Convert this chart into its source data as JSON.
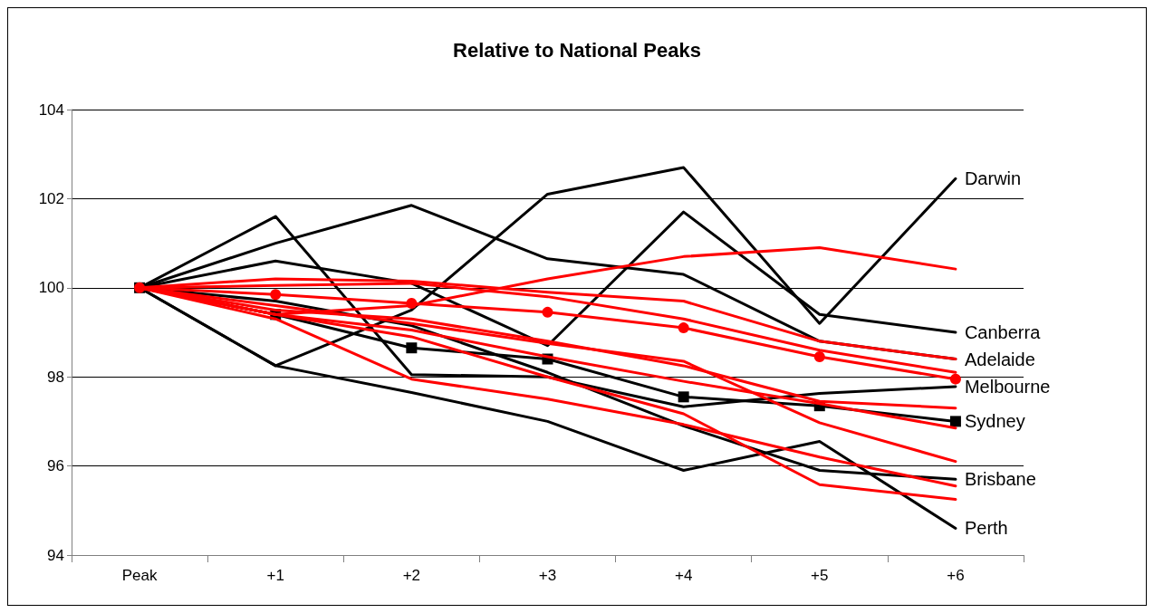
{
  "chart_data": {
    "type": "line",
    "title": "Relative to National Peaks",
    "categories": [
      "Peak",
      "+1",
      "+2",
      "+3",
      "+4",
      "+5",
      "+6"
    ],
    "ylim": [
      94,
      104
    ],
    "yticks": [
      94,
      96,
      98,
      100,
      102,
      104
    ],
    "grid": "y",
    "legend": false,
    "marker": "none",
    "line_style": "solid",
    "series": [
      {
        "color": "#ff0000",
        "values": [
          100,
          99.4,
          99.6,
          100.2,
          100.7,
          100.9,
          100.42
        ]
      },
      {
        "color": "#ff0000",
        "values": [
          100,
          100.2,
          100.15,
          99.9,
          99.7,
          98.8,
          98.4
        ]
      },
      {
        "color": "#ff0000",
        "marker": "circle",
        "values": [
          100,
          99.85,
          99.65,
          99.45,
          99.1,
          98.45,
          97.95
        ]
      },
      {
        "color": "#ff0000",
        "values": [
          100,
          100.05,
          100.1,
          99.8,
          99.3,
          98.6,
          98.1
        ]
      },
      {
        "color": "#ff0000",
        "values": [
          100,
          99.5,
          99.3,
          98.8,
          98.25,
          97.45,
          97.3
        ]
      },
      {
        "color": "#ff0000",
        "values": [
          100,
          99.4,
          99.05,
          98.45,
          97.9,
          97.4,
          96.85
        ]
      },
      {
        "color": "#ff0000",
        "values": [
          100,
          99.6,
          99.2,
          98.75,
          98.35,
          96.97,
          96.1
        ]
      },
      {
        "color": "#ff0000",
        "values": [
          100,
          99.3,
          97.95,
          97.5,
          96.93,
          96.2,
          95.55
        ]
      },
      {
        "color": "#ff0000",
        "values": [
          100,
          99.4,
          98.9,
          98.0,
          97.17,
          95.58,
          95.25
        ]
      },
      {
        "name": "Darwin",
        "color": "#000000",
        "values": [
          100,
          98.25,
          99.5,
          102.1,
          102.7,
          99.2,
          102.45
        ]
      },
      {
        "name": "Canberra",
        "color": "#000000",
        "values": [
          100,
          100.6,
          100.1,
          98.7,
          101.7,
          99.4,
          99.0
        ]
      },
      {
        "name": "Adelaide",
        "color": "#000000",
        "values": [
          100,
          101.0,
          101.85,
          100.65,
          100.3,
          98.8,
          98.4
        ]
      },
      {
        "name": "Melbourne",
        "color": "#000000",
        "values": [
          100,
          101.6,
          98.05,
          98.0,
          97.33,
          97.63,
          97.78
        ]
      },
      {
        "name": "Sydney",
        "color": "#000000",
        "marker": "square",
        "values": [
          100,
          99.4,
          98.65,
          98.4,
          97.55,
          97.35,
          97.0
        ]
      },
      {
        "name": "Brisbane",
        "color": "#000000",
        "values": [
          100,
          99.7,
          99.15,
          98.1,
          96.9,
          95.9,
          95.7
        ]
      },
      {
        "name": "Perth",
        "color": "#000000",
        "values": [
          100,
          98.25,
          97.65,
          97.0,
          95.9,
          96.55,
          94.6
        ]
      }
    ]
  }
}
